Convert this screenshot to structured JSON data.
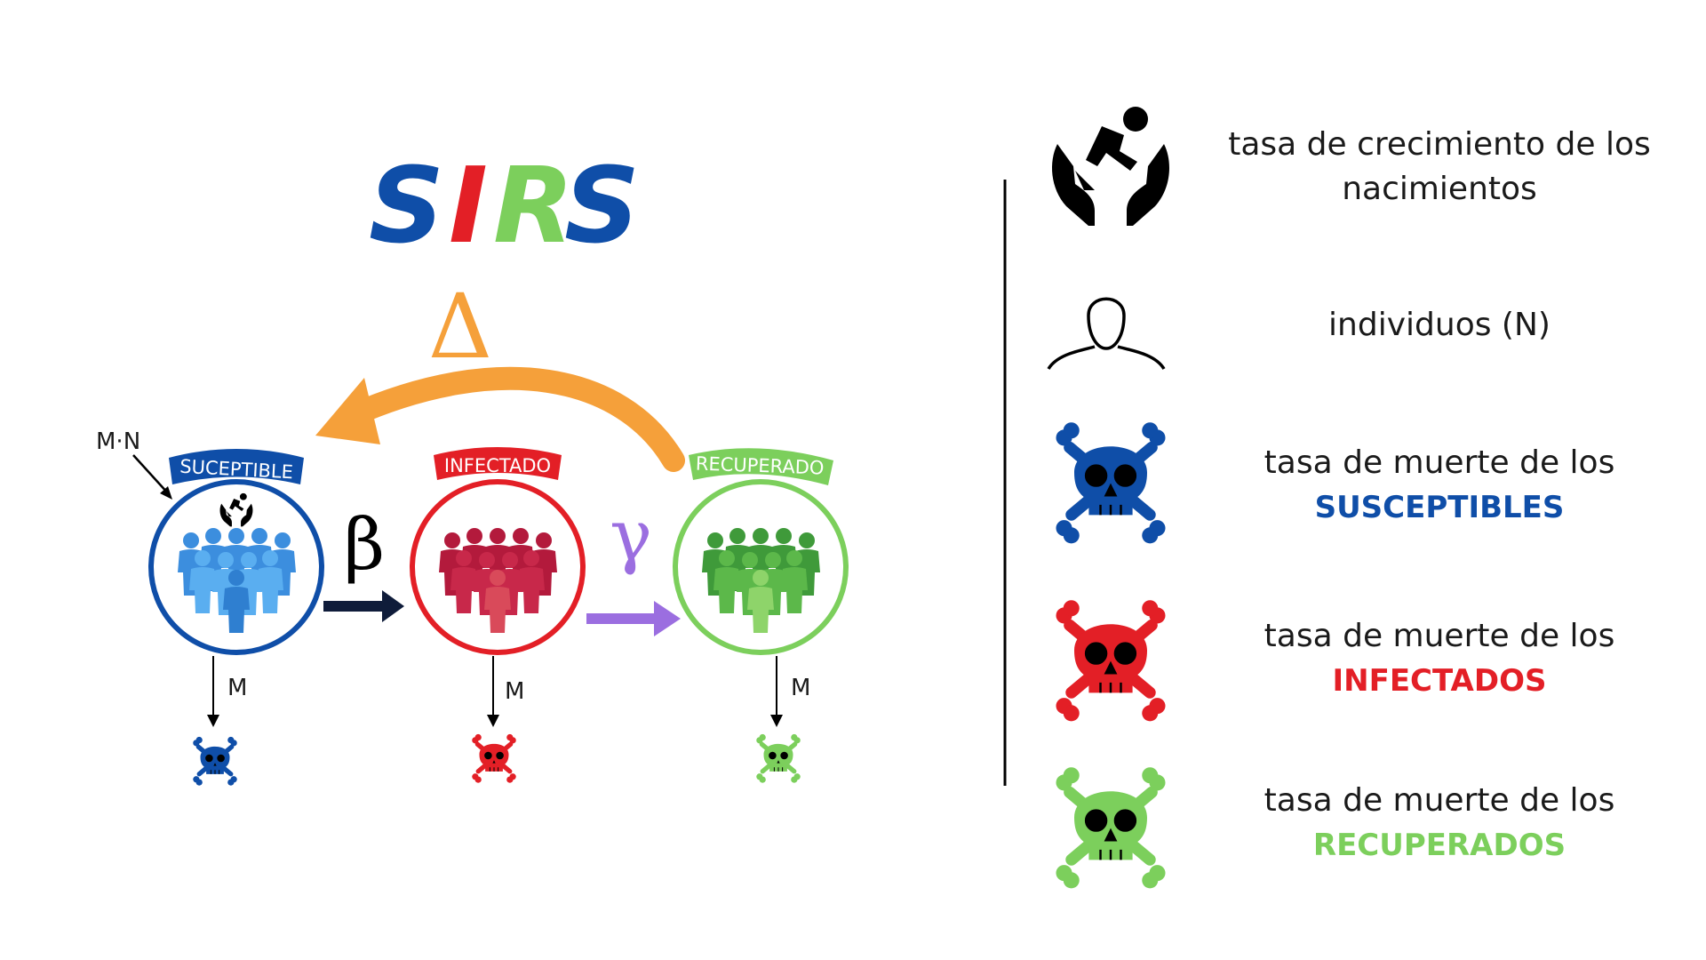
{
  "title": {
    "letters": [
      "S",
      "I",
      "R",
      "S"
    ]
  },
  "colors": {
    "susceptible": "#0f4ea8",
    "infected": "#e31f26",
    "recovered": "#7ccf5c",
    "delta_arrow": "#f5a03a",
    "gamma_arrow": "#9b6ee0",
    "beta_arrow": "#0f1c3a"
  },
  "diagram": {
    "birth_label": "M·N",
    "delta_symbol": "Δ",
    "beta_symbol": "β",
    "gamma_symbol": "γ",
    "compartments": [
      {
        "label": "SUCEPTIBLE",
        "death_label": "M"
      },
      {
        "label": "INFECTADO",
        "death_label": "M"
      },
      {
        "label": "RECUPERADO",
        "death_label": "M"
      }
    ]
  },
  "legend": {
    "items": [
      {
        "icon": "birth-hands-icon",
        "line1": "tasa de crecimiento de los",
        "line2": "nacimientos"
      },
      {
        "icon": "person-outline-icon",
        "line1": "individuos (N)",
        "line2": ""
      },
      {
        "icon": "skull-blue-icon",
        "line1": "tasa de muerte de los",
        "line2": "SUSCEPTIBLES"
      },
      {
        "icon": "skull-red-icon",
        "line1": "tasa de muerte de los",
        "line2": "INFECTADOS"
      },
      {
        "icon": "skull-green-icon",
        "line1": "tasa de muerte de los",
        "line2": "RECUPERADOS"
      }
    ]
  }
}
